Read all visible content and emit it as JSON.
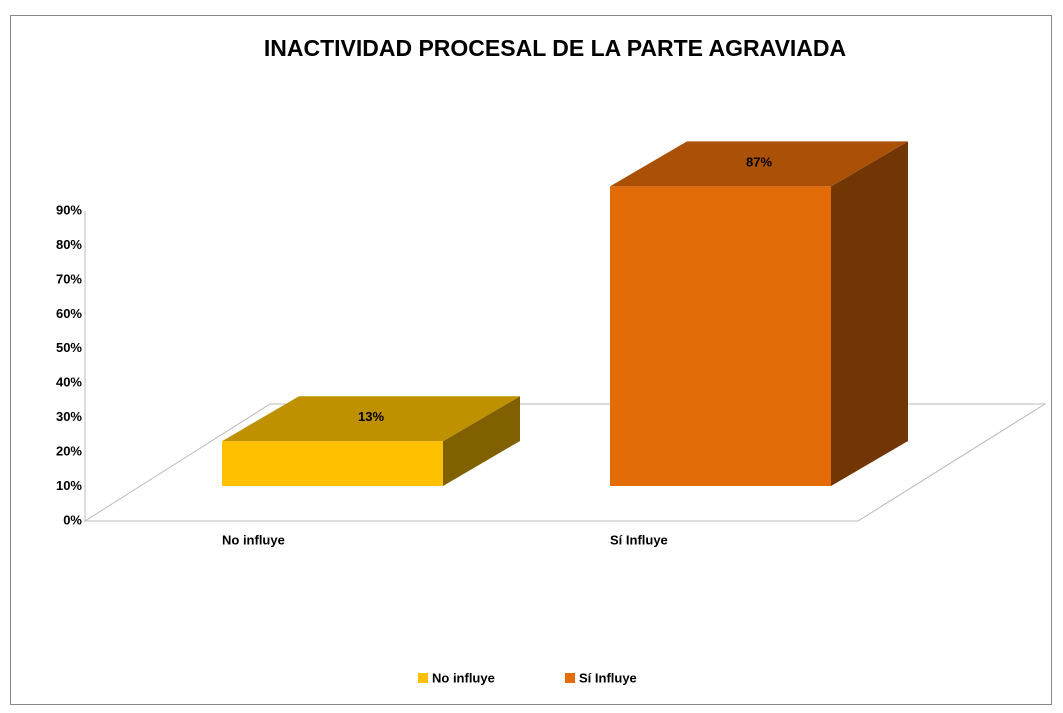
{
  "chart_data": {
    "type": "bar3d",
    "title": "INACTIVIDAD  PROCESAL DE LA PARTE AGRAVIADA",
    "categories": [
      "No  influye",
      "Sí Influye"
    ],
    "values": [
      13,
      87
    ],
    "value_labels": [
      "13%",
      "87%"
    ],
    "colors": [
      "#ffc000",
      "#e36c09"
    ],
    "ylim": [
      0,
      90
    ],
    "yticks": [
      {
        "value": 0,
        "label": "0%"
      },
      {
        "value": 10,
        "label": "10%"
      },
      {
        "value": 20,
        "label": "20%"
      },
      {
        "value": 30,
        "label": "30%"
      },
      {
        "value": 40,
        "label": "40%"
      },
      {
        "value": 50,
        "label": "50%"
      },
      {
        "value": 60,
        "label": "60%"
      },
      {
        "value": 70,
        "label": "70%"
      },
      {
        "value": 80,
        "label": "80%"
      },
      {
        "value": 90,
        "label": "90%"
      }
    ],
    "legend": "bottom"
  }
}
